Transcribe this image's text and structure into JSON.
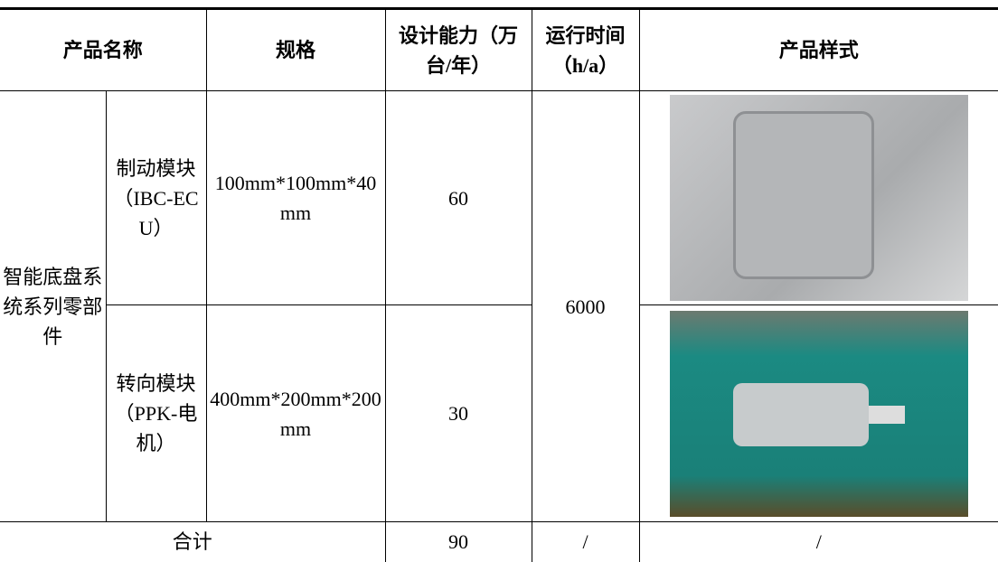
{
  "table": {
    "header": [
      "产品名称",
      "规格",
      "设计能力（万台/年）",
      "运行时间（h/a）",
      "产品样式"
    ],
    "group": "智能底盘系统系列零部件",
    "rows": [
      {
        "name": "制动模块（IBC-ECU）",
        "spec": "100mm*100mm*40mm",
        "capacity": "60"
      },
      {
        "name": "转向模块（PPK-电机）",
        "spec": "400mm*200mm*200mm",
        "capacity": "30"
      }
    ],
    "runtime": "6000",
    "total": [
      "合计",
      "90",
      "/",
      "/"
    ]
  }
}
